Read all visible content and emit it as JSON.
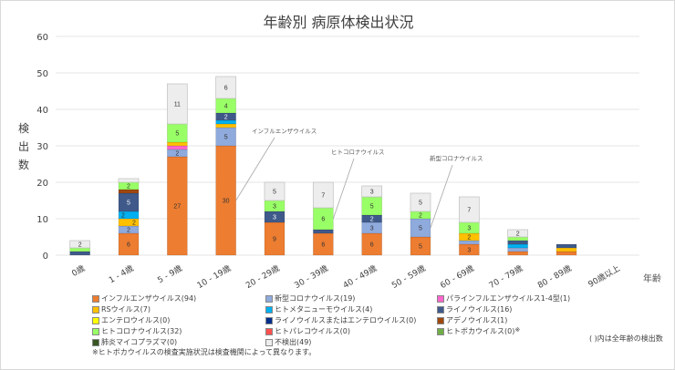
{
  "chart_data": {
    "type": "bar",
    "stacked": true,
    "title": "年齢別 病原体検出状況",
    "xlabel": "年齢",
    "ylabel": "検出数",
    "ylim": [
      0,
      60
    ],
    "yticks": [
      0,
      10,
      20,
      30,
      40,
      50,
      60
    ],
    "grid": true,
    "legend_position": "bottom",
    "categories": [
      "0歳",
      "1 - 4歳",
      "5 - 9歳",
      "10 - 19歳",
      "20 - 29歳",
      "30 - 39歳",
      "40 - 49歳",
      "50 - 59歳",
      "60 - 69歳",
      "70 - 79歳",
      "80 - 89歳",
      "90歳以上"
    ],
    "series": [
      {
        "name": "インフルエンザウイルス(94)",
        "color": "#ED7D31",
        "values": [
          0,
          6,
          27,
          30,
          9,
          6,
          6,
          5,
          3,
          1,
          1,
          0
        ]
      },
      {
        "name": "新型コロナウイルス(19)",
        "color": "#8FAADC",
        "values": [
          0,
          2,
          2,
          5,
          0,
          0,
          3,
          5,
          1,
          1,
          0,
          0
        ]
      },
      {
        "name": "パラインフルエンザウイルス1-4型(1)",
        "color": "#FF66CC",
        "values": [
          0,
          0,
          1,
          0,
          0,
          0,
          0,
          0,
          0,
          0,
          0,
          0
        ]
      },
      {
        "name": "RSウイルス(7)",
        "color": "#FFC000",
        "values": [
          0,
          2,
          1,
          1,
          0,
          0,
          0,
          0,
          2,
          0,
          1,
          0
        ]
      },
      {
        "name": "ヒトメタニューモウイルス(4)",
        "color": "#00B0F0",
        "values": [
          0,
          2,
          0,
          1,
          0,
          0,
          0,
          0,
          0,
          1,
          0,
          0
        ]
      },
      {
        "name": "ライノウイルス(16)",
        "color": "#3F5A8A",
        "values": [
          1,
          5,
          0,
          2,
          3,
          1,
          2,
          0,
          0,
          1,
          1,
          0
        ]
      },
      {
        "name": "エンテロウイルス(0)",
        "color": "#FFFF00",
        "values": [
          0,
          0,
          0,
          0,
          0,
          0,
          0,
          0,
          0,
          0,
          0,
          0
        ]
      },
      {
        "name": "ライノウイルスまたはエンテロウイルス(0)",
        "color": "#002E8A",
        "values": [
          0,
          0,
          0,
          0,
          0,
          0,
          0,
          0,
          0,
          0,
          0,
          0
        ]
      },
      {
        "name": "アデノウイルス(1)",
        "color": "#9E480E",
        "values": [
          0,
          1,
          0,
          0,
          0,
          0,
          0,
          0,
          0,
          0,
          0,
          0
        ]
      },
      {
        "name": "ヒトコロナウイルス(32)",
        "color": "#99FF66",
        "values": [
          1,
          2,
          5,
          4,
          3,
          6,
          5,
          2,
          3,
          1,
          0,
          0
        ]
      },
      {
        "name": "ヒトパレコウイルス(0)",
        "color": "#FF5050",
        "values": [
          0,
          0,
          0,
          0,
          0,
          0,
          0,
          0,
          0,
          0,
          0,
          0
        ]
      },
      {
        "name": "ヒトボカウイルス(0)",
        "color": "#70AD47",
        "values": [
          0,
          0,
          0,
          0,
          0,
          0,
          0,
          0,
          0,
          0,
          0,
          0
        ]
      },
      {
        "name": "肺炎マイコプラズマ(0)",
        "color": "#375623",
        "values": [
          0,
          0,
          0,
          0,
          0,
          0,
          0,
          0,
          0,
          0,
          0,
          0
        ]
      },
      {
        "name": "不検出(49)",
        "color": "#EDEDED",
        "values": [
          2,
          1,
          11,
          6,
          5,
          7,
          3,
          5,
          7,
          2,
          0,
          0
        ]
      }
    ],
    "annotations": [
      {
        "text": "インフルエンザウイルス",
        "category": "10 - 19歳"
      },
      {
        "text": "ヒトコロナウイルス",
        "category": "30 - 39歳"
      },
      {
        "text": "新型コロナウイルス",
        "category": "50 - 59歳"
      }
    ],
    "legend_mark": "※",
    "legend_note": "( )内は全年齢の検出数",
    "footnote": "※ヒトボカウイルスの検査実施状況は検査機関によって異なります。"
  }
}
